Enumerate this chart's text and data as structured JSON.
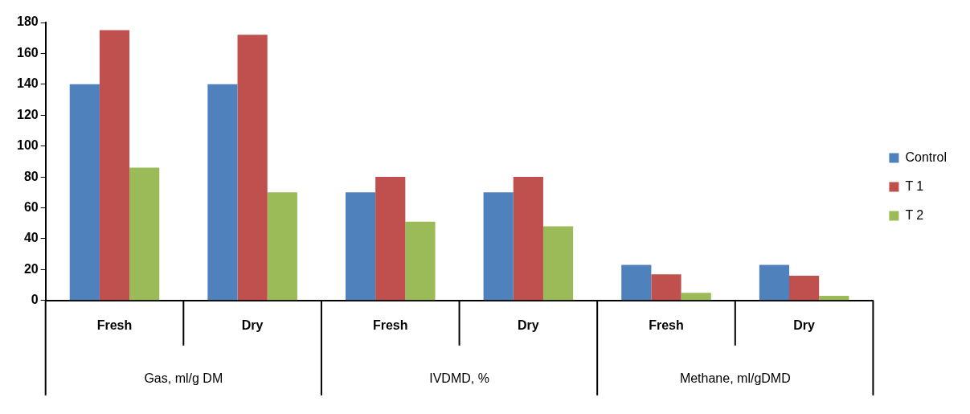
{
  "chart_data": {
    "type": "bar",
    "categories": [
      "Fresh",
      "Dry",
      "Fresh",
      "Dry",
      "Fresh",
      "Dry"
    ],
    "series": [
      {
        "name": "Control",
        "color": "#4f81bd",
        "values": [
          140,
          140,
          70,
          70,
          23,
          23
        ]
      },
      {
        "name": "T 1",
        "color": "#c0504d",
        "values": [
          175,
          172,
          80,
          80,
          17,
          16
        ]
      },
      {
        "name": "T 2",
        "color": "#9bbb59",
        "values": [
          86,
          70,
          51,
          48,
          5,
          3
        ]
      }
    ],
    "annotations": [
      "Gas, ml/g DM",
      "IVDMD, %",
      "Methane, ml/gDMD"
    ],
    "ylim": [
      0,
      180
    ],
    "yticks": [
      0,
      20,
      40,
      60,
      80,
      100,
      120,
      140,
      160,
      180
    ],
    "grid": false,
    "legend": "right"
  }
}
